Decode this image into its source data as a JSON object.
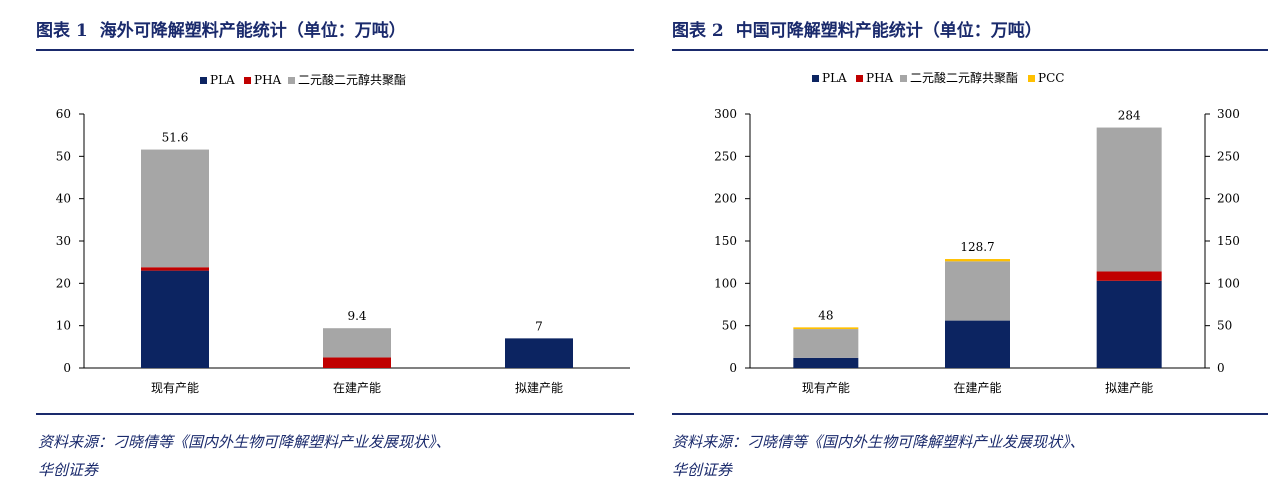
{
  "figures": [
    {
      "label": "图表 1",
      "title": "海外可降解塑料产能统计（单位：万吨）",
      "source_line1": "资料来源：刁晓倩等《国内外生物可降解塑料产业发展现状》、",
      "source_line2": "华创证券"
    },
    {
      "label": "图表 2",
      "title": "中国可降解塑料产能统计（单位：万吨）",
      "source_line1": "资料来源：刁晓倩等《国内外生物可降解塑料产业发展现状》、",
      "source_line2": "华创证券"
    }
  ],
  "chart_data": [
    {
      "type": "bar",
      "stacked": true,
      "categories": [
        "现有产能",
        "在建产能",
        "拟建产能"
      ],
      "series": [
        {
          "name": "PLA",
          "values": [
            23,
            0,
            7
          ],
          "color": "#0c2461"
        },
        {
          "name": "PHA",
          "values": [
            0.8,
            2.5,
            0
          ],
          "color": "#c00000"
        },
        {
          "name": "二元酸二元醇共聚酯",
          "values": [
            27.8,
            6.9,
            0
          ],
          "color": "#a6a6a6"
        }
      ],
      "totals": [
        "51.6",
        "9.4",
        "7"
      ],
      "ylim": [
        0,
        60
      ],
      "yticks": [
        0,
        10,
        20,
        30,
        40,
        50,
        60
      ],
      "secondary_axis": false,
      "legend_position": "top",
      "grid": false
    },
    {
      "type": "bar",
      "stacked": true,
      "categories": [
        "现有产能",
        "在建产能",
        "拟建产能"
      ],
      "series": [
        {
          "name": "PLA",
          "values": [
            12,
            56,
            103
          ],
          "color": "#0c2461"
        },
        {
          "name": "PHA",
          "values": [
            0,
            0,
            11
          ],
          "color": "#c00000"
        },
        {
          "name": "二元酸二元醇共聚酯",
          "values": [
            34,
            70,
            170
          ],
          "color": "#a6a6a6"
        },
        {
          "name": "PCC",
          "values": [
            2,
            2.7,
            0
          ],
          "color": "#ffc000"
        }
      ],
      "totals": [
        "48",
        "128.7",
        "284"
      ],
      "ylim": [
        0,
        300
      ],
      "yticks": [
        0,
        50,
        100,
        150,
        200,
        250,
        300
      ],
      "secondary_axis": true,
      "legend_position": "top",
      "grid": false
    }
  ]
}
